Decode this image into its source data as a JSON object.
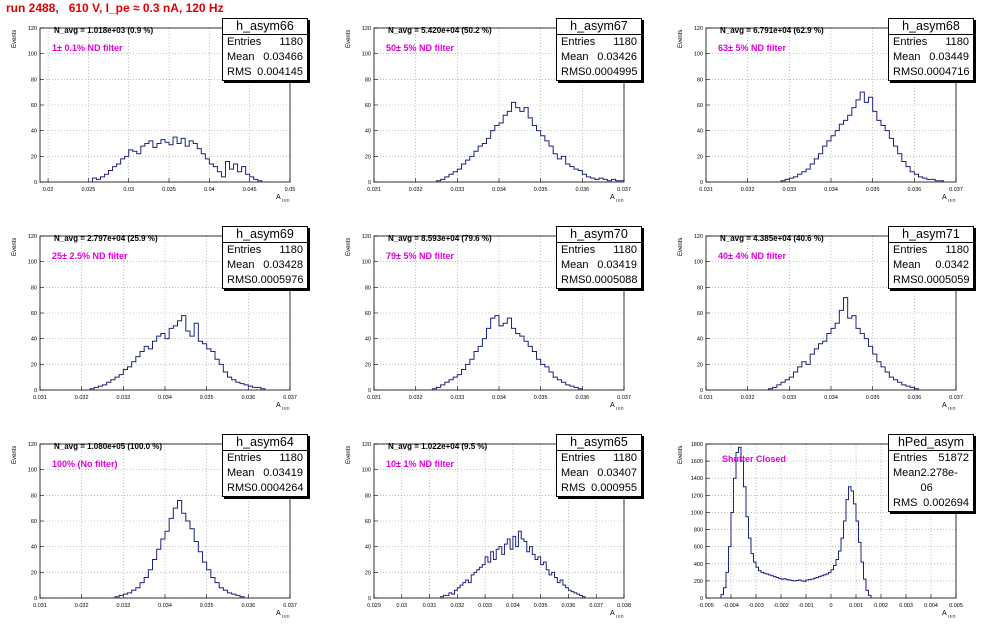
{
  "run_title": "run 2488,   610 V, I_pe ≈ 0.3 nA, 120 Hz",
  "y_axis_label": "Events",
  "x_axis_label": "A",
  "x_axis_subscript": "LED",
  "stat_labels": {
    "entries": "Entries",
    "mean": "Mean",
    "rms": "RMS"
  },
  "colors": {
    "histogram": "#1a237e",
    "title": "#e00000",
    "annotation": "#e000e0",
    "grid": "#999999"
  },
  "chart_data": [
    {
      "type": "histogram",
      "hist_name": "h_asym66",
      "entries": "1180",
      "mean": "0.03466",
      "rms": "0.004145",
      "navg": "N_avg = 1.018e+03 (0.9 %)",
      "filter": "1± 0.1% ND filter",
      "xlim": [
        0.019,
        0.05
      ],
      "ylim": [
        0,
        120
      ],
      "x_ticks": [
        0.02,
        0.025,
        0.03,
        0.035,
        0.04,
        0.045,
        0.05
      ],
      "x_tick_labels": [
        "0.02",
        "0.025",
        "0.03",
        "0.035",
        "0.04",
        "0.045",
        "0.05"
      ],
      "y_ticks": [
        0,
        20,
        40,
        60,
        80,
        100,
        120
      ],
      "y_tick_labels": [
        "0",
        "20",
        "40",
        "60",
        "80",
        "100",
        "120"
      ],
      "bins": {
        "start": 0.0255,
        "width": 0.0005,
        "values": [
          3,
          2,
          4,
          6,
          9,
          12,
          14,
          18,
          20,
          25,
          24,
          22,
          28,
          30,
          32,
          27,
          30,
          33,
          31,
          29,
          35,
          30,
          34,
          28,
          32,
          30,
          26,
          22,
          18,
          14,
          12,
          8,
          4,
          16,
          10,
          14,
          8,
          12,
          6,
          4,
          2,
          1
        ]
      }
    },
    {
      "type": "histogram",
      "hist_name": "h_asym67",
      "entries": "1180",
      "mean": "0.03426",
      "rms": "0.0004995",
      "navg": "N_avg = 5.420e+04 (50.2 %)",
      "filter": "50± 5% ND filter",
      "xlim": [
        0.031,
        0.037
      ],
      "ylim": [
        0,
        120
      ],
      "x_ticks": [
        0.031,
        0.032,
        0.033,
        0.034,
        0.035,
        0.036,
        0.037
      ],
      "x_tick_labels": [
        "0.031",
        "0.032",
        "0.033",
        "0.034",
        "0.035",
        "0.036",
        "0.037"
      ],
      "y_ticks": [
        0,
        20,
        40,
        60,
        80,
        100,
        120
      ],
      "y_tick_labels": [
        "0",
        "20",
        "40",
        "60",
        "80",
        "100",
        "120"
      ],
      "bins": {
        "start": 0.0325,
        "width": 0.0001,
        "values": [
          1,
          2,
          4,
          6,
          8,
          10,
          14,
          17,
          20,
          24,
          28,
          30,
          34,
          40,
          44,
          46,
          52,
          55,
          62,
          58,
          55,
          58,
          50,
          44,
          40,
          36,
          32,
          28,
          22,
          18,
          20,
          14,
          12,
          10,
          9,
          6,
          4,
          3,
          2,
          3,
          2,
          1,
          2,
          1,
          1
        ]
      }
    },
    {
      "type": "histogram",
      "hist_name": "h_asym68",
      "entries": "1180",
      "mean": "0.03449",
      "rms": "0.0004716",
      "navg": "N_avg = 6.791e+04 (62.9 %)",
      "filter": "63± 5% ND filter",
      "xlim": [
        0.031,
        0.037
      ],
      "ylim": [
        0,
        120
      ],
      "x_ticks": [
        0.031,
        0.032,
        0.033,
        0.034,
        0.035,
        0.036,
        0.037
      ],
      "x_tick_labels": [
        "0.031",
        "0.032",
        "0.033",
        "0.034",
        "0.035",
        "0.036",
        "0.037"
      ],
      "y_ticks": [
        0,
        20,
        40,
        60,
        80,
        100,
        120
      ],
      "y_tick_labels": [
        "0",
        "20",
        "40",
        "60",
        "80",
        "100",
        "120"
      ],
      "bins": {
        "start": 0.0328,
        "width": 0.0001,
        "values": [
          1,
          2,
          3,
          4,
          6,
          8,
          10,
          14,
          18,
          22,
          28,
          32,
          36,
          40,
          45,
          48,
          52,
          58,
          64,
          70,
          62,
          66,
          55,
          48,
          44,
          40,
          34,
          28,
          22,
          16,
          12,
          8,
          6,
          4,
          3,
          2,
          2,
          1,
          1
        ]
      }
    },
    {
      "type": "histogram",
      "hist_name": "h_asym69",
      "entries": "1180",
      "mean": "0.03428",
      "rms": "0.0005976",
      "navg": "N_avg = 2.797e+04 (25.9 %)",
      "filter": "25± 2.5% ND filter",
      "xlim": [
        0.031,
        0.037
      ],
      "ylim": [
        0,
        120
      ],
      "x_ticks": [
        0.031,
        0.032,
        0.033,
        0.034,
        0.035,
        0.036,
        0.037
      ],
      "x_tick_labels": [
        "0.031",
        "0.032",
        "0.033",
        "0.034",
        "0.035",
        "0.036",
        "0.037"
      ],
      "y_ticks": [
        0,
        20,
        40,
        60,
        80,
        100,
        120
      ],
      "y_tick_labels": [
        "0",
        "20",
        "40",
        "60",
        "80",
        "100",
        "120"
      ],
      "bins": {
        "start": 0.0322,
        "width": 0.0001,
        "values": [
          1,
          2,
          3,
          4,
          6,
          8,
          10,
          12,
          16,
          18,
          22,
          26,
          30,
          34,
          32,
          38,
          42,
          44,
          40,
          48,
          50,
          54,
          58,
          46,
          42,
          52,
          38,
          36,
          32,
          30,
          24,
          20,
          14,
          10,
          8,
          6,
          5,
          4,
          3,
          2,
          2,
          1
        ]
      }
    },
    {
      "type": "histogram",
      "hist_name": "h_asym70",
      "entries": "1180",
      "mean": "0.03419",
      "rms": "0.0005088",
      "navg": "N_avg = 8.593e+04 (79.6 %)",
      "filter": "79± 5% ND filter",
      "xlim": [
        0.031,
        0.037
      ],
      "ylim": [
        0,
        120
      ],
      "x_ticks": [
        0.031,
        0.032,
        0.033,
        0.034,
        0.035,
        0.036,
        0.037
      ],
      "x_tick_labels": [
        "0.031",
        "0.032",
        "0.033",
        "0.034",
        "0.035",
        "0.036",
        "0.037"
      ],
      "y_ticks": [
        0,
        20,
        40,
        60,
        80,
        100,
        120
      ],
      "y_tick_labels": [
        "0",
        "20",
        "40",
        "60",
        "80",
        "100",
        "120"
      ],
      "bins": {
        "start": 0.0324,
        "width": 0.0001,
        "values": [
          1,
          2,
          4,
          6,
          8,
          10,
          12,
          16,
          20,
          24,
          30,
          34,
          40,
          48,
          56,
          58,
          50,
          52,
          56,
          48,
          44,
          42,
          38,
          34,
          30,
          24,
          20,
          18,
          14,
          10,
          8,
          6,
          4,
          3,
          2,
          1
        ]
      }
    },
    {
      "type": "histogram",
      "hist_name": "h_asym71",
      "entries": "1180",
      "mean": "0.0342",
      "rms": "0.0005059",
      "navg": "N_avg = 4.385e+04 (40.6 %)",
      "filter": "40± 4% ND filter",
      "xlim": [
        0.031,
        0.037
      ],
      "ylim": [
        0,
        120
      ],
      "x_ticks": [
        0.031,
        0.032,
        0.033,
        0.034,
        0.035,
        0.036,
        0.037
      ],
      "x_tick_labels": [
        "0.031",
        "0.032",
        "0.033",
        "0.034",
        "0.035",
        "0.036",
        "0.037"
      ],
      "y_ticks": [
        0,
        20,
        40,
        60,
        80,
        100,
        120
      ],
      "y_tick_labels": [
        "0",
        "20",
        "40",
        "60",
        "80",
        "100",
        "120"
      ],
      "bins": {
        "start": 0.0325,
        "width": 0.0001,
        "values": [
          1,
          2,
          4,
          6,
          8,
          10,
          14,
          18,
          22,
          20,
          28,
          32,
          36,
          38,
          44,
          48,
          52,
          62,
          72,
          56,
          58,
          48,
          44,
          40,
          34,
          28,
          22,
          18,
          14,
          10,
          8,
          6,
          4,
          3,
          2,
          1
        ]
      }
    },
    {
      "type": "histogram",
      "hist_name": "h_asym64",
      "entries": "1180",
      "mean": "0.03419",
      "rms": "0.0004264",
      "navg": "N_avg = 1.080e+05 (100.0 %)",
      "filter": "100% (No filter)",
      "xlim": [
        0.031,
        0.037
      ],
      "ylim": [
        0,
        120
      ],
      "x_ticks": [
        0.031,
        0.032,
        0.033,
        0.034,
        0.035,
        0.036,
        0.037
      ],
      "x_tick_labels": [
        "0.031",
        "0.032",
        "0.033",
        "0.034",
        "0.035",
        "0.036",
        "0.037"
      ],
      "y_ticks": [
        0,
        20,
        40,
        60,
        80,
        100,
        120
      ],
      "y_tick_labels": [
        "0",
        "20",
        "40",
        "60",
        "80",
        "100",
        "120"
      ],
      "bins": {
        "start": 0.0328,
        "width": 0.0001,
        "values": [
          1,
          2,
          3,
          4,
          6,
          8,
          12,
          16,
          22,
          30,
          38,
          46,
          52,
          62,
          70,
          76,
          66,
          60,
          54,
          44,
          36,
          28,
          22,
          16,
          12,
          8,
          6,
          4,
          3,
          2,
          1
        ]
      }
    },
    {
      "type": "histogram",
      "hist_name": "h_asym65",
      "entries": "1180",
      "mean": "0.03407",
      "rms": "0.000955",
      "navg": "N_avg = 1.022e+04 (9.5 %)",
      "filter": "10± 1% ND filter",
      "xlim": [
        0.029,
        0.038
      ],
      "ylim": [
        0,
        120
      ],
      "x_ticks": [
        0.029,
        0.03,
        0.031,
        0.032,
        0.033,
        0.034,
        0.035,
        0.036,
        0.037,
        0.038
      ],
      "x_tick_labels": [
        "0.029",
        "0.03",
        "0.031",
        "0.032",
        "0.033",
        "0.034",
        "0.035",
        "0.036",
        "0.037",
        "0.038"
      ],
      "y_ticks": [
        0,
        20,
        40,
        60,
        80,
        100,
        120
      ],
      "y_tick_labels": [
        "0",
        "20",
        "40",
        "60",
        "80",
        "100",
        "120"
      ],
      "bins": {
        "start": 0.0314,
        "width": 0.0001,
        "values": [
          1,
          2,
          2,
          4,
          3,
          6,
          8,
          10,
          12,
          14,
          12,
          18,
          20,
          22,
          24,
          26,
          32,
          28,
          36,
          30,
          38,
          40,
          34,
          42,
          46,
          38,
          48,
          40,
          52,
          46,
          44,
          36,
          40,
          34,
          30,
          32,
          26,
          28,
          22,
          18,
          20,
          16,
          12,
          14,
          10,
          8,
          6,
          5,
          4,
          3,
          2,
          1
        ]
      }
    },
    {
      "type": "histogram",
      "hist_name": "hPed_asym",
      "entries": "51872",
      "mean": "2.278e-06",
      "rms": "0.002694",
      "navg": "",
      "filter": "Shutter Closed",
      "xlim": [
        -0.005,
        0.005
      ],
      "ylim": [
        0,
        1800
      ],
      "x_ticks": [
        -0.005,
        -0.004,
        -0.003,
        -0.002,
        -0.001,
        0,
        0.001,
        0.002,
        0.003,
        0.004,
        0.005
      ],
      "x_tick_labels": [
        "-0.005",
        "-0.004",
        "-0.003",
        "-0.002",
        "-0.001",
        "0",
        "0.001",
        "0.002",
        "0.003",
        "0.004",
        "0.005"
      ],
      "y_ticks": [
        0,
        200,
        400,
        600,
        800,
        1000,
        1200,
        1400,
        1600,
        1800
      ],
      "y_tick_labels": [
        "0",
        "200",
        "400",
        "600",
        "800",
        "1000",
        "1200",
        "1400",
        "1600",
        "1800"
      ],
      "bins": {
        "start": -0.0044,
        "width": 0.0001,
        "values": [
          40,
          120,
          300,
          600,
          1000,
          1400,
          1700,
          1760,
          1600,
          1300,
          950,
          700,
          520,
          420,
          360,
          320,
          300,
          290,
          280,
          270,
          260,
          250,
          240,
          230,
          220,
          225,
          215,
          210,
          205,
          200,
          205,
          210,
          200,
          195,
          210,
          215,
          220,
          230,
          240,
          250,
          260,
          270,
          280,
          300,
          330,
          380,
          450,
          550,
          700,
          900,
          1150,
          1300,
          1250,
          1100,
          900,
          650,
          420,
          220,
          90,
          30
        ]
      }
    }
  ]
}
